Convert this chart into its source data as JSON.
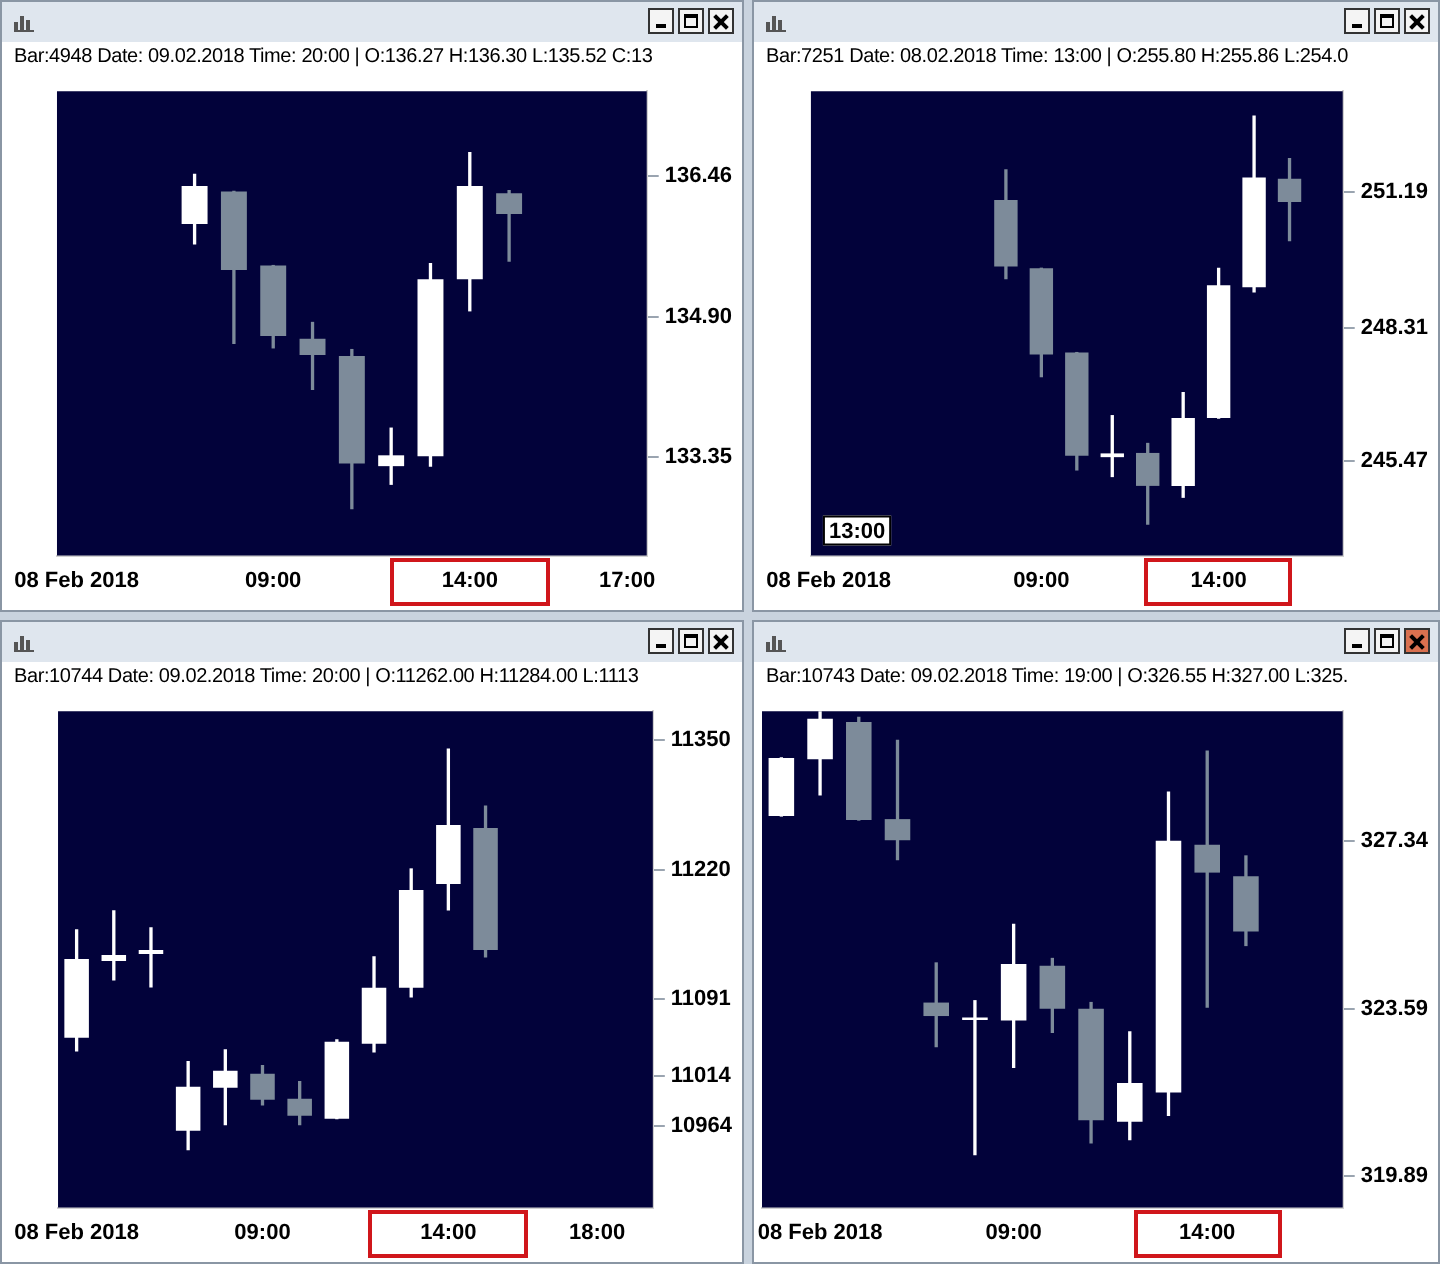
{
  "chart_data": [
    {
      "type": "candlestick",
      "subtitle": "Bar:4948 Date: 09.02.2018 Time: 20:00 | O:136.27 H:136.30 L:135.52 C:13",
      "categories": [
        "08 Feb 2018",
        null,
        null,
        null,
        null,
        "09:00",
        null,
        null,
        null,
        null,
        "14:00",
        null,
        null,
        null,
        "17:00"
      ],
      "ohlc": [
        null,
        null,
        null,
        [
          135.93,
          136.48,
          135.71,
          136.35
        ],
        [
          136.29,
          136.29,
          134.61,
          135.42
        ],
        [
          135.47,
          135.47,
          134.56,
          134.69
        ],
        [
          134.66,
          134.84,
          134.1,
          134.48
        ],
        [
          134.47,
          134.54,
          132.78,
          133.28
        ],
        [
          133.25,
          133.67,
          133.05,
          133.37
        ],
        [
          133.36,
          135.49,
          133.25,
          135.32
        ],
        [
          135.32,
          136.72,
          134.97,
          136.35
        ],
        [
          136.27,
          136.3,
          135.52,
          136.04
        ],
        null,
        null,
        null
      ],
      "colors": [
        null,
        null,
        null,
        "#ffffff",
        "#7d8b9a",
        "#7d8b9a",
        "#7d8b9a",
        "#7d8b9a",
        "#ffffff",
        "#ffffff",
        "#ffffff",
        "#7d8b9a",
        null,
        null,
        null
      ],
      "ylim": [
        132.26,
        137.4
      ],
      "yticks": [
        133.35,
        {
          "value": 134.9,
          "label": "134.90"
        },
        136.46
      ],
      "grid": false,
      "legend": false
    },
    {
      "type": "candlestick",
      "subtitle": "Bar:7251 Date: 08.02.2018 Time: 13:00 | O:255.80 H:255.86 L:254.0",
      "categories": [
        "08 Feb 2018",
        null,
        null,
        null,
        null,
        null,
        "09:00",
        null,
        null,
        null,
        null,
        "14:00",
        null,
        null,
        null
      ],
      "ohlc": [
        null,
        null,
        null,
        null,
        null,
        [
          251.02,
          251.66,
          249.35,
          249.61
        ],
        [
          249.57,
          249.57,
          247.27,
          247.74
        ],
        [
          247.78,
          247.78,
          245.29,
          245.59
        ],
        [
          245.56,
          246.44,
          245.15,
          245.64
        ],
        [
          245.65,
          245.85,
          244.14,
          244.95
        ],
        [
          244.95,
          246.93,
          244.71,
          246.39
        ],
        [
          246.39,
          249.57,
          246.39,
          249.21
        ],
        [
          249.17,
          252.8,
          249.07,
          251.5
        ],
        [
          251.47,
          251.9,
          250.16,
          250.98
        ],
        null
      ],
      "colors": [
        null,
        null,
        null,
        null,
        null,
        "#7d8b9a",
        "#7d8b9a",
        "#7d8b9a",
        "#ffffff",
        "#7d8b9a",
        "#ffffff",
        "#ffffff",
        "#ffffff",
        "#7d8b9a",
        null
      ],
      "ylim": [
        243.47,
        253.33
      ],
      "yticks": [
        245.47,
        248.31,
        251.19
      ],
      "grid": false,
      "legend": false,
      "annotations": [
        "13:00"
      ]
    },
    {
      "type": "candlestick",
      "subtitle": "Bar:10744 Date: 09.02.2018 Time: 20:00 | O:11262.00 H:11284.00 L:1113",
      "categories": [
        "08 Feb 2018",
        null,
        null,
        null,
        null,
        "09:00",
        null,
        null,
        null,
        null,
        "14:00",
        null,
        null,
        null,
        "18:00",
        null
      ],
      "ohlc": [
        [
          11052,
          11160,
          11039,
          11131
        ],
        [
          11129,
          11179,
          11110,
          11135
        ],
        [
          11136,
          11162,
          11103,
          11140
        ],
        [
          10959,
          11028,
          10940,
          11003
        ],
        [
          11002,
          11040,
          10965,
          11019
        ],
        [
          11016,
          11024,
          10985,
          10990
        ],
        [
          10991,
          11008,
          10965,
          10974
        ],
        [
          10971,
          11050,
          10971,
          11048
        ],
        [
          11046,
          11133,
          11038,
          11102
        ],
        [
          11102,
          11221,
          11093,
          11200
        ],
        [
          11206,
          11341,
          11180,
          11265
        ],
        [
          11262,
          11284,
          11133,
          11140
        ],
        null,
        null,
        null,
        null
      ],
      "colors": [
        "#ffffff",
        "#ffffff",
        "#ffffff",
        "#ffffff",
        "#ffffff",
        "#7d8b9a",
        "#7d8b9a",
        "#ffffff",
        "#ffffff",
        "#ffffff",
        "#ffffff",
        "#7d8b9a",
        null,
        null,
        null,
        null
      ],
      "ylim": [
        10882,
        11379
      ],
      "yticks": [
        10964,
        11014,
        11091,
        11220,
        11350
      ],
      "grid": false,
      "legend": false
    },
    {
      "type": "candlestick",
      "subtitle": "Bar:10743 Date: 09.02.2018 Time: 19:00 | O:326.55 H:327.00 L:325.",
      "categories": [
        null,
        "08 Feb 2018",
        null,
        null,
        null,
        null,
        "09:00",
        null,
        null,
        null,
        null,
        "14:00",
        null,
        null,
        null
      ],
      "ohlc": [
        [
          327.89,
          329.18,
          327.89,
          329.18
        ],
        [
          329.15,
          330.22,
          328.36,
          330.05
        ],
        [
          329.98,
          330.08,
          327.8,
          327.8
        ],
        [
          327.82,
          329.57,
          326.92,
          327.35
        ],
        [
          323.74,
          324.62,
          322.76,
          323.44
        ],
        [
          323.35,
          323.78,
          320.36,
          323.41
        ],
        [
          323.34,
          325.48,
          322.3,
          324.6
        ],
        [
          324.56,
          324.72,
          323.08,
          323.6
        ],
        [
          323.6,
          323.74,
          320.62,
          321.12
        ],
        [
          321.09,
          323.09,
          320.69,
          321.95
        ],
        [
          321.74,
          328.42,
          321.23,
          327.34
        ],
        [
          327.25,
          329.33,
          323.64,
          326.63
        ],
        [
          326.55,
          327.0,
          325.01,
          325.32
        ],
        null,
        null
      ],
      "colors": [
        "#ffffff",
        "#ffffff",
        "#7d8b9a",
        "#7d8b9a",
        "#7d8b9a",
        "#ffffff",
        "#ffffff",
        "#7d8b9a",
        "#7d8b9a",
        "#ffffff",
        "#ffffff",
        "#7d8b9a",
        "#7d8b9a",
        null,
        null
      ],
      "ylim": [
        319.18,
        330.22
      ],
      "yticks": [
        319.89,
        323.59,
        327.34
      ],
      "grid": false,
      "legend": false
    }
  ]
}
